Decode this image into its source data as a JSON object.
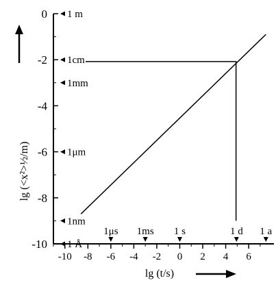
{
  "chart_data": {
    "type": "line",
    "title": "",
    "xlabel": "lg (t/s)",
    "ylabel": "lg (<x²>½/m)",
    "xlim": [
      -11,
      8.2
    ],
    "ylim": [
      -10,
      0
    ],
    "x_ticks": [
      -10,
      -8,
      -6,
      -4,
      -2,
      0,
      2,
      4,
      6
    ],
    "y_ticks": [
      0,
      -2,
      -4,
      -6,
      -8,
      -10
    ],
    "grid": false,
    "series": [
      {
        "x": [
          -8.6,
          7.5
        ],
        "y": [
          -8.7,
          -0.9
        ]
      }
    ],
    "reference_lines": [
      {
        "points": [
          {
            "x": -8.2,
            "y": -2.08
          },
          {
            "x": 4.9,
            "y": -2.08
          },
          {
            "x": 4.9,
            "y": -9
          }
        ]
      }
    ],
    "y_unit_marks": [
      {
        "label": "1 m",
        "y": 0
      },
      {
        "label": "1cm",
        "y": -2
      },
      {
        "label": "1mm",
        "y": -3
      },
      {
        "label": "1μm",
        "y": -6
      },
      {
        "label": "1nm",
        "y": -9
      },
      {
        "label": "1 Å",
        "y": -10
      }
    ],
    "x_unit_marks": [
      {
        "label": "1μs",
        "x": -6
      },
      {
        "label": "1ms",
        "x": -3
      },
      {
        "label": "1 s",
        "x": 0
      },
      {
        "label": "1 d",
        "x": 4.94
      },
      {
        "label": "1 a",
        "x": 7.5
      }
    ]
  }
}
